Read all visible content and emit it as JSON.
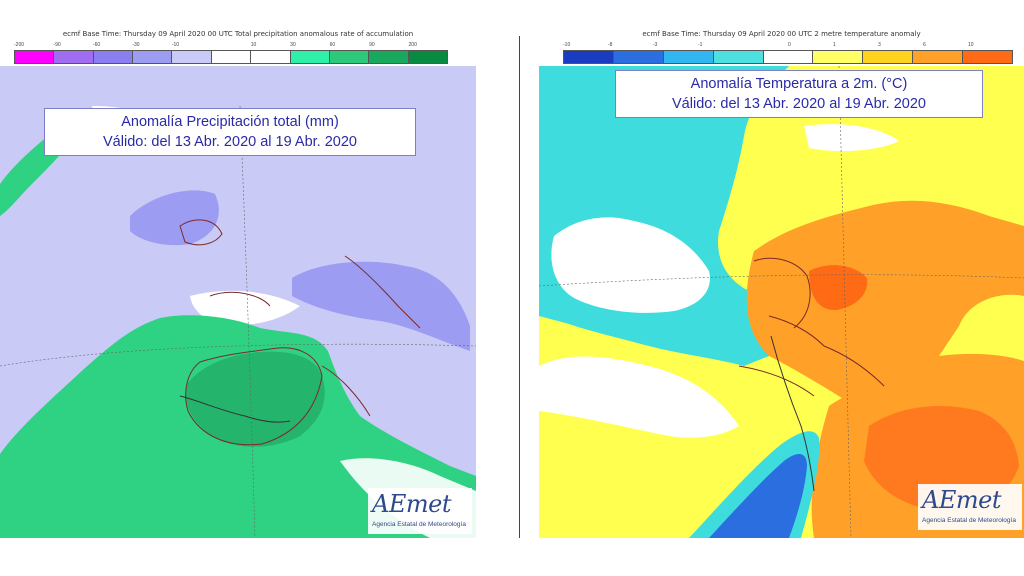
{
  "precipitation_panel": {
    "header": "ecmf  Base Time: Thursday 09 April 2020 00 UTC  Total precipitation anomalous rate of accumulation",
    "title_line1": "Anomalía Precipitación total (mm)",
    "title_line2": "Válido: del 13 Abr. 2020 al 19 Abr. 2020",
    "legend": {
      "ticks": [
        "-200",
        "-90",
        "-60",
        "-30",
        "-10",
        "",
        "10",
        "30",
        "60",
        "90",
        "200"
      ],
      "colors": [
        "#ff00ff",
        "#a06cf0",
        "#8a7ef0",
        "#9c9cf2",
        "#cacaf6",
        "#ffffff",
        "#ffffff",
        "#2ef0a8",
        "#2ec87a",
        "#1aa85c",
        "#0a8a40"
      ]
    },
    "logo": {
      "brand": "AEmet",
      "agency": "Agencia Estatal de Meteorología"
    }
  },
  "temperature_panel": {
    "header": "ecmf  Base Time: Thursday 09 April 2020 00 UTC  2 metre temperature anomaly",
    "title_line1": "Anomalía Temperatura a 2m. (°C)",
    "title_line2": "Válido: del 13 Abr. 2020 al 19 Abr. 2020",
    "legend": {
      "ticks": [
        "-10",
        "-8",
        "-3",
        "-1",
        "",
        "0",
        "1",
        "3",
        "6",
        "10"
      ],
      "colors": [
        "#1a3cc0",
        "#2a6ee0",
        "#32b6f0",
        "#4ee0e0",
        "#ffffff",
        "#ffff66",
        "#ffd21e",
        "#ffa028",
        "#ff6a14"
      ]
    },
    "logo": {
      "brand": "AEmet",
      "agency": "Agencia Estatal de Meteorología"
    }
  },
  "colors": {
    "precip_light": "#cacaf6",
    "precip_medium": "#9c9cf2",
    "precip_green": "#2ed282",
    "temp_cyan": "#3edcdc",
    "temp_yellow": "#ffff50",
    "temp_orange": "#ffa028",
    "temp_blue": "#2a6ee0",
    "coast": "#7a2a2a",
    "title_text": "#2a2aa8"
  }
}
